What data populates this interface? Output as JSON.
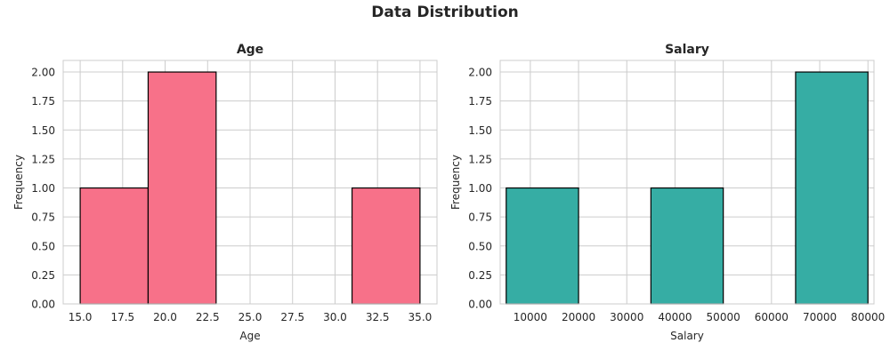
{
  "figure": {
    "title": "Data Distribution"
  },
  "chart_data": [
    {
      "type": "bar",
      "title": "Age",
      "xlabel": "Age",
      "ylabel": "Frequency",
      "xlim": [
        14.0,
        36.0
      ],
      "ylim": [
        0,
        2.1
      ],
      "xticks": [
        15.0,
        17.5,
        20.0,
        22.5,
        25.0,
        27.5,
        30.0,
        32.5,
        35.0
      ],
      "xtick_labels": [
        "15.0",
        "17.5",
        "20.0",
        "22.5",
        "25.0",
        "27.5",
        "30.0",
        "32.5",
        "35.0"
      ],
      "yticks": [
        0,
        0.25,
        0.5,
        0.75,
        1.0,
        1.25,
        1.5,
        1.75,
        2.0
      ],
      "ytick_labels": [
        "0.00",
        "0.25",
        "0.50",
        "0.75",
        "1.00",
        "1.25",
        "1.50",
        "1.75",
        "2.00"
      ],
      "bin_edges": [
        15.0,
        19.0,
        23.0,
        27.0,
        31.0,
        35.0
      ],
      "values": [
        1,
        2,
        0,
        0,
        1
      ],
      "color": "#f77189",
      "edgecolor": "#000000",
      "grid": true
    },
    {
      "type": "bar",
      "title": "Salary",
      "xlabel": "Salary",
      "ylabel": "Frequency",
      "xlim": [
        3750,
        81250
      ],
      "ylim": [
        0,
        2.1
      ],
      "xticks": [
        10000,
        20000,
        30000,
        40000,
        50000,
        60000,
        70000,
        80000
      ],
      "xtick_labels": [
        "10000",
        "20000",
        "30000",
        "40000",
        "50000",
        "60000",
        "70000",
        "80000"
      ],
      "yticks": [
        0,
        0.25,
        0.5,
        0.75,
        1.0,
        1.25,
        1.5,
        1.75,
        2.0
      ],
      "ytick_labels": [
        "0.00",
        "0.25",
        "0.50",
        "0.75",
        "1.00",
        "1.25",
        "1.50",
        "1.75",
        "2.00"
      ],
      "bin_edges": [
        5000,
        20000,
        35000,
        50000,
        65000,
        80000
      ],
      "values": [
        1,
        0,
        1,
        0,
        2
      ],
      "color": "#36ada4",
      "edgecolor": "#000000",
      "grid": true
    }
  ]
}
